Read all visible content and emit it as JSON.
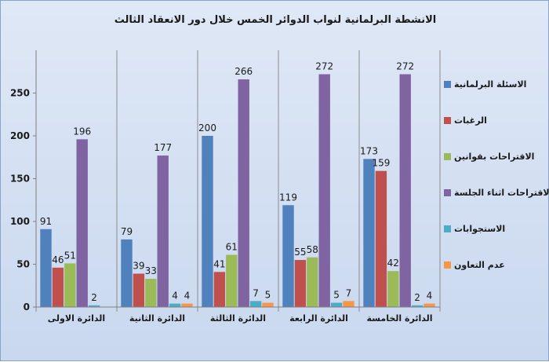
{
  "chart_data": {
    "type": "bar",
    "title": "الانشطة البرلمانية لنواب الدوائر الخمس خلال دور الانعقاد الثالث",
    "categories": [
      "الدائرة الاولى",
      "الدائرة الثانية",
      "الدائرة الثالثة",
      "الدائرة الرابعة",
      "الدائرة الخامسة"
    ],
    "series": [
      {
        "name": "الاسئلة البرلمانية",
        "color": "#4f81bd",
        "values": [
          91,
          79,
          200,
          119,
          173
        ]
      },
      {
        "name": "الرغبات",
        "color": "#c0504d",
        "values": [
          46,
          39,
          41,
          55,
          159
        ]
      },
      {
        "name": "الاقتراحات بقوانين",
        "color": "#9bbb59",
        "values": [
          51,
          33,
          61,
          58,
          42
        ]
      },
      {
        "name": "الاقتراحات اثناء الجلسة",
        "color": "#8064a2",
        "values": [
          196,
          177,
          266,
          272,
          272
        ]
      },
      {
        "name": "الاستجوابات",
        "color": "#4bacc6",
        "values": [
          2,
          4,
          7,
          5,
          2
        ]
      },
      {
        "name": "عدم التعاون",
        "color": "#f79646",
        "values": [
          null,
          4,
          5,
          7,
          4
        ]
      }
    ],
    "ylim": [
      0,
      300
    ],
    "yticks": [
      0,
      50,
      100,
      150,
      200,
      250
    ],
    "grid": "vertical category separators",
    "legend": "right"
  }
}
